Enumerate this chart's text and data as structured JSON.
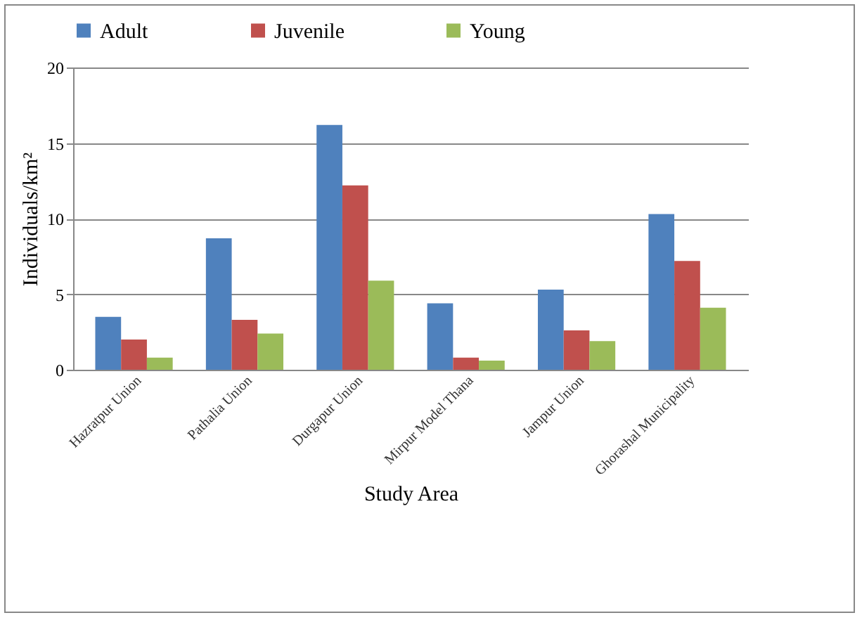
{
  "chart_data": {
    "type": "bar",
    "xlabel": "Study Area",
    "ylabel": "Individuals/km²",
    "categories": [
      "Hazratpur Union",
      "Pathalia Union",
      "Durgapur Union",
      "Mirpur Model Thana",
      "Jampur Union",
      "Ghorashal Municipality"
    ],
    "series": [
      {
        "name": "Adult",
        "color": "#4f81bd",
        "values": [
          3.5,
          8.7,
          16.2,
          4.4,
          5.3,
          10.3
        ]
      },
      {
        "name": "Juvenile",
        "color": "#c0504d",
        "values": [
          2.0,
          3.3,
          12.2,
          0.8,
          2.6,
          7.2
        ]
      },
      {
        "name": "Young",
        "color": "#9bbb59",
        "values": [
          0.8,
          2.4,
          5.9,
          0.6,
          1.9,
          4.1
        ]
      }
    ],
    "ylim": [
      0,
      20
    ],
    "yticks": [
      0,
      5,
      10,
      15,
      20
    ],
    "grid": "y",
    "legend": "top"
  }
}
